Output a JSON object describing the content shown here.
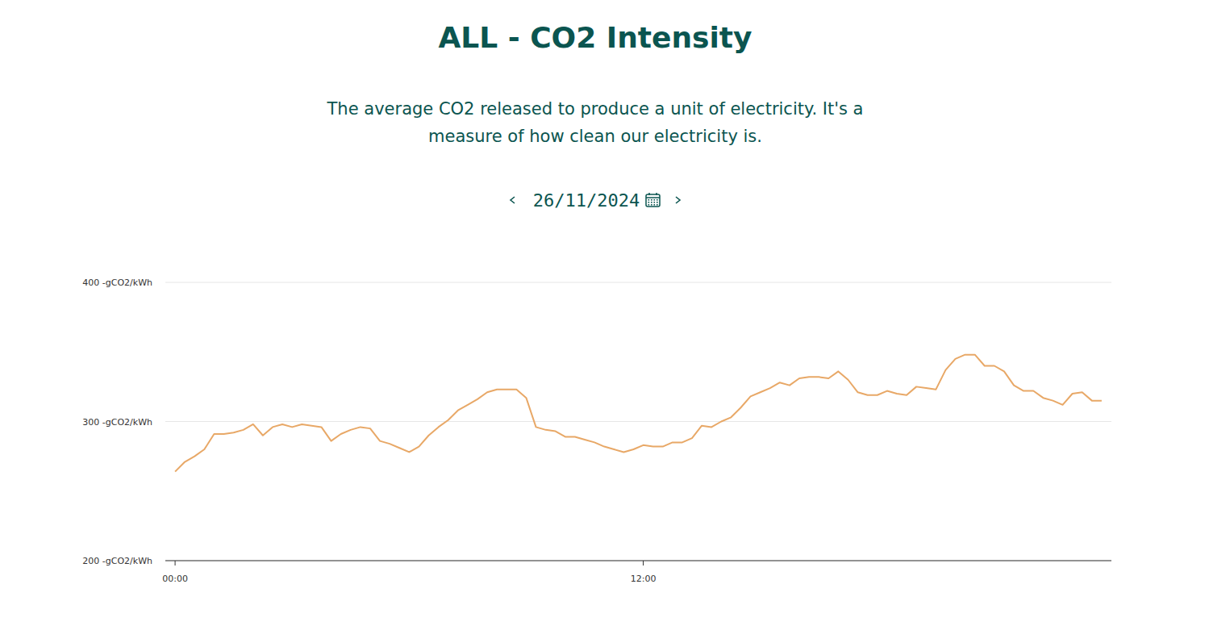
{
  "chart_data": {
    "type": "line",
    "title": "ALL - CO2 Intensity",
    "subtitle": "The average CO2 released to produce a unit of electricity. It's a measure of how clean our electricity is.",
    "date": "26/11/2024",
    "x": [
      0,
      0.25,
      0.5,
      0.75,
      1,
      1.25,
      1.5,
      1.75,
      2,
      2.25,
      2.5,
      2.75,
      3,
      3.25,
      3.5,
      3.75,
      4,
      4.25,
      4.5,
      4.75,
      5,
      5.25,
      5.5,
      5.75,
      6,
      6.25,
      6.5,
      6.75,
      7,
      7.25,
      7.5,
      7.75,
      8,
      8.25,
      8.5,
      8.75,
      9,
      9.25,
      9.5,
      9.75,
      10,
      10.25,
      10.5,
      10.75,
      11,
      11.25,
      11.5,
      11.75,
      12,
      12.25,
      12.5,
      12.75,
      13,
      13.25,
      13.5,
      13.75,
      14,
      14.25,
      14.5,
      14.75,
      15,
      15.25,
      15.5,
      15.75,
      16,
      16.25,
      16.5,
      16.75,
      17,
      17.25,
      17.5,
      17.75,
      18,
      18.25,
      18.5,
      18.75,
      19,
      19.25,
      19.5,
      19.75,
      20,
      20.25,
      20.5,
      20.75,
      21,
      21.25,
      21.5,
      21.75,
      22,
      22.25,
      22.5,
      22.75,
      23,
      23.25,
      23.5,
      23.75
    ],
    "values": [
      264,
      271,
      275,
      280,
      291,
      291,
      292,
      294,
      298,
      290,
      296,
      298,
      296,
      298,
      297,
      296,
      286,
      291,
      294,
      296,
      295,
      286,
      284,
      281,
      278,
      282,
      290,
      296,
      301,
      308,
      312,
      316,
      321,
      323,
      323,
      323,
      317,
      296,
      294,
      293,
      289,
      289,
      287,
      285,
      282,
      280,
      278,
      280,
      283,
      282,
      282,
      285,
      285,
      288,
      297,
      296,
      300,
      303,
      310,
      318,
      321,
      324,
      328,
      326,
      331,
      332,
      332,
      331,
      336,
      330,
      321,
      319,
      319,
      322,
      320,
      319,
      325,
      324,
      323,
      337,
      345,
      348,
      348,
      340,
      340,
      336,
      326,
      322,
      322,
      317,
      315,
      312,
      320,
      321,
      315,
      315
    ],
    "color": "#e8a867",
    "xlim": [
      -0.25,
      24
    ],
    "xticks": [
      {
        "value": 0,
        "label": "00:00"
      },
      {
        "value": 12,
        "label": "12:00"
      }
    ],
    "ylim": [
      200,
      400
    ],
    "yticks": [
      {
        "value": 200,
        "label": "200 -gCO2/kWh"
      },
      {
        "value": 300,
        "label": "300 -gCO2/kWh"
      },
      {
        "value": 400,
        "label": "400 -gCO2/kWh"
      }
    ],
    "grid": true
  }
}
